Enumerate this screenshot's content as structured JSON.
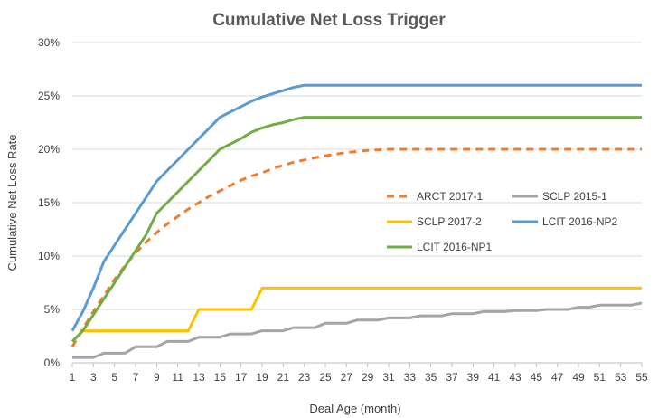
{
  "chart_data": {
    "type": "line",
    "title": "Cumulative Net Loss Trigger",
    "xlabel": "Deal Age (month)",
    "ylabel": "Cumulative Net Loss Rate",
    "xlim": [
      1,
      55
    ],
    "ylim": [
      0,
      30
    ],
    "x_ticks": [
      1,
      3,
      5,
      7,
      9,
      11,
      13,
      15,
      17,
      19,
      21,
      23,
      25,
      27,
      29,
      31,
      33,
      35,
      37,
      39,
      41,
      43,
      45,
      47,
      49,
      51,
      53,
      55
    ],
    "y_ticks": [
      {
        "value": 0,
        "label": "0%"
      },
      {
        "value": 5,
        "label": "5%"
      },
      {
        "value": 10,
        "label": "10%"
      },
      {
        "value": 15,
        "label": "15%"
      },
      {
        "value": 20,
        "label": "20%"
      },
      {
        "value": 25,
        "label": "25%"
      },
      {
        "value": 30,
        "label": "30%"
      }
    ],
    "grid": "horizontal",
    "legend_position": "center-right",
    "series": [
      {
        "name": "ARCT 2017-1",
        "color": "#ED7D31",
        "dash": true,
        "points": [
          [
            1,
            1.5
          ],
          [
            2,
            3.2
          ],
          [
            3,
            4.8
          ],
          [
            4,
            6.3
          ],
          [
            5,
            7.8
          ],
          [
            6,
            9.1
          ],
          [
            7,
            10.3
          ],
          [
            8,
            11.3
          ],
          [
            9,
            12.2
          ],
          [
            10,
            13.0
          ],
          [
            11,
            13.7
          ],
          [
            12,
            14.4
          ],
          [
            13,
            15.0
          ],
          [
            14,
            15.6
          ],
          [
            15,
            16.1
          ],
          [
            16,
            16.6
          ],
          [
            17,
            17.1
          ],
          [
            18,
            17.5
          ],
          [
            19,
            17.8
          ],
          [
            20,
            18.2
          ],
          [
            21,
            18.5
          ],
          [
            22,
            18.8
          ],
          [
            23,
            19.0
          ],
          [
            24,
            19.2
          ],
          [
            25,
            19.4
          ],
          [
            26,
            19.55
          ],
          [
            27,
            19.7
          ],
          [
            28,
            19.8
          ],
          [
            29,
            19.9
          ],
          [
            30,
            19.95
          ],
          [
            31,
            20.0
          ],
          [
            55,
            20.0
          ]
        ]
      },
      {
        "name": "SCLP 2015-1",
        "color": "#A5A5A5",
        "dash": false,
        "points": [
          [
            1,
            0.5
          ],
          [
            3,
            0.5
          ],
          [
            4,
            0.9
          ],
          [
            6,
            0.9
          ],
          [
            7,
            1.5
          ],
          [
            9,
            1.5
          ],
          [
            10,
            2.0
          ],
          [
            12,
            2.0
          ],
          [
            13,
            2.4
          ],
          [
            15,
            2.4
          ],
          [
            16,
            2.7
          ],
          [
            18,
            2.7
          ],
          [
            19,
            3.0
          ],
          [
            21,
            3.0
          ],
          [
            22,
            3.3
          ],
          [
            24,
            3.3
          ],
          [
            25,
            3.7
          ],
          [
            27,
            3.7
          ],
          [
            28,
            4.0
          ],
          [
            30,
            4.0
          ],
          [
            31,
            4.2
          ],
          [
            33,
            4.2
          ],
          [
            34,
            4.4
          ],
          [
            36,
            4.4
          ],
          [
            37,
            4.6
          ],
          [
            39,
            4.6
          ],
          [
            40,
            4.8
          ],
          [
            42,
            4.8
          ],
          [
            43,
            4.9
          ],
          [
            45,
            4.9
          ],
          [
            46,
            5.0
          ],
          [
            48,
            5.0
          ],
          [
            49,
            5.2
          ],
          [
            50,
            5.2
          ],
          [
            51,
            5.4
          ],
          [
            54,
            5.4
          ],
          [
            55,
            5.6
          ]
        ]
      },
      {
        "name": "SCLP 2017-2",
        "color": "#FFC000",
        "dash": false,
        "points": [
          [
            1,
            2.0
          ],
          [
            2,
            3.0
          ],
          [
            12,
            3.0
          ],
          [
            13,
            5.0
          ],
          [
            18,
            5.0
          ],
          [
            19,
            7.0
          ],
          [
            55,
            7.0
          ]
        ]
      },
      {
        "name": "LCIT 2016-NP2",
        "color": "#5B9BD5",
        "dash": false,
        "points": [
          [
            1,
            3.0
          ],
          [
            2,
            4.8
          ],
          [
            3,
            7.0
          ],
          [
            4,
            9.5
          ],
          [
            5,
            11.0
          ],
          [
            6,
            12.5
          ],
          [
            7,
            14.0
          ],
          [
            8,
            15.5
          ],
          [
            9,
            17.0
          ],
          [
            10,
            18.0
          ],
          [
            11,
            19.0
          ],
          [
            12,
            20.0
          ],
          [
            13,
            21.0
          ],
          [
            14,
            22.0
          ],
          [
            15,
            23.0
          ],
          [
            16,
            23.5
          ],
          [
            17,
            24.0
          ],
          [
            18,
            24.5
          ],
          [
            19,
            24.9
          ],
          [
            20,
            25.2
          ],
          [
            21,
            25.5
          ],
          [
            22,
            25.8
          ],
          [
            23,
            26.0
          ],
          [
            55,
            26.0
          ]
        ]
      },
      {
        "name": "LCIT 2016-NP1",
        "color": "#70AD47",
        "dash": false,
        "points": [
          [
            1,
            2.0
          ],
          [
            2,
            3.0
          ],
          [
            3,
            4.5
          ],
          [
            4,
            6.0
          ],
          [
            5,
            7.5
          ],
          [
            6,
            9.0
          ],
          [
            7,
            10.5
          ],
          [
            8,
            12.0
          ],
          [
            9,
            14.0
          ],
          [
            10,
            15.0
          ],
          [
            11,
            16.0
          ],
          [
            12,
            17.0
          ],
          [
            13,
            18.0
          ],
          [
            14,
            19.0
          ],
          [
            15,
            20.0
          ],
          [
            16,
            20.5
          ],
          [
            17,
            21.0
          ],
          [
            18,
            21.6
          ],
          [
            19,
            22.0
          ],
          [
            20,
            22.3
          ],
          [
            21,
            22.5
          ],
          [
            22,
            22.8
          ],
          [
            23,
            23.0
          ],
          [
            55,
            23.0
          ]
        ]
      }
    ]
  }
}
